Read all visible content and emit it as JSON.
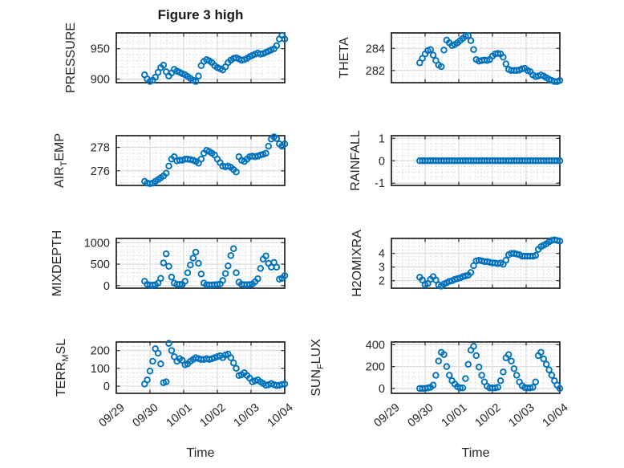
{
  "figure": {
    "title": "Figure 3 high",
    "xlabel": "Time",
    "marker_color": "#0072BD",
    "axis_color": "#262626",
    "grid_major_color": "#d9d9d9",
    "grid_minor_color": "#c3c3c3",
    "background": "#ffffff"
  },
  "chart_data": {
    "type": "scatter",
    "marker": "open-circle",
    "grid": "major solid + minor dotted",
    "legend": "none",
    "x_categories": [
      "09/29",
      "09/30",
      "10/01",
      "10/02",
      "10/03",
      "10/04"
    ],
    "x_unit": "days since 09/29",
    "xlim": [
      0,
      5
    ],
    "x_minor_per_day": 6,
    "layout": "4 rows x 2 columns",
    "subplots": [
      {
        "name": "PRESSURE",
        "ylabel": {
          "pre": "PRESSURE",
          "sub": "",
          "post": ""
        },
        "yticks": [
          900,
          950
        ],
        "ylim": [
          894,
          976
        ],
        "yminor": 10,
        "t_start": 0.84,
        "t_step": 0.08,
        "values": [
          907,
          900,
          896,
          898,
          903,
          911,
          919,
          923,
          912,
          905,
          910,
          916,
          913,
          911,
          909,
          907,
          904,
          901,
          898,
          896,
          905,
          922,
          929,
          932,
          930,
          927,
          922,
          919,
          917,
          915,
          920,
          927,
          931,
          934,
          935,
          933,
          931,
          932,
          934,
          937,
          939,
          941,
          943,
          941,
          942,
          944,
          946,
          948,
          950,
          955,
          966,
          972,
          966
        ]
      },
      {
        "name": "THETA",
        "ylabel": {
          "pre": "THETA",
          "sub": "",
          "post": ""
        },
        "yticks": [
          282,
          284
        ],
        "ylim": [
          280.9,
          285.4
        ],
        "yminor": 0.5,
        "t_start": 0.84,
        "t_step": 0.08,
        "values": [
          282.7,
          283.1,
          283.5,
          283.8,
          283.9,
          283.4,
          282.9,
          282.5,
          282.35,
          283.85,
          284.75,
          284.5,
          284.25,
          284.35,
          284.5,
          284.7,
          284.9,
          285.1,
          285.15,
          284.7,
          283.9,
          283.0,
          282.85,
          282.9,
          282.95,
          282.9,
          283.0,
          283.3,
          283.5,
          283.55,
          283.5,
          283.2,
          282.6,
          282.1,
          282.0,
          282.0,
          282.0,
          282.05,
          282.15,
          282.2,
          282.0,
          281.9,
          281.6,
          281.45,
          281.5,
          281.6,
          281.5,
          281.35,
          281.2,
          281.1,
          281.0,
          281.0,
          281.1
        ]
      },
      {
        "name": "AIR_TEMP",
        "ylabel": {
          "pre": "AIR",
          "sub": "T",
          "post": "EMP"
        },
        "yticks": [
          276,
          278
        ],
        "ylim": [
          274.75,
          279.0
        ],
        "yminor": 0.5,
        "t_start": 0.84,
        "t_step": 0.08,
        "values": [
          275.1,
          274.95,
          274.9,
          274.95,
          275.1,
          275.25,
          275.4,
          275.55,
          275.8,
          276.4,
          277.0,
          277.2,
          276.85,
          276.9,
          276.9,
          277.0,
          277.0,
          276.95,
          276.9,
          276.8,
          276.65,
          277.0,
          277.5,
          277.75,
          277.65,
          277.5,
          277.35,
          277.0,
          276.7,
          276.4,
          276.35,
          276.4,
          276.3,
          276.1,
          275.9,
          277.2,
          276.9,
          276.8,
          277.0,
          277.2,
          277.25,
          277.2,
          277.25,
          277.35,
          277.4,
          277.5,
          278.1,
          278.7,
          278.9,
          278.75,
          278.3,
          278.1,
          278.3
        ]
      },
      {
        "name": "RAINFALL",
        "ylabel": {
          "pre": "RAINFALL",
          "sub": "",
          "post": ""
        },
        "yticks": [
          -1,
          0,
          1
        ],
        "ylim": [
          -1.1,
          1.12
        ],
        "yminor": 0.25,
        "t_start": 0.84,
        "t_step": 0.08,
        "values": [
          0,
          0,
          0,
          0,
          0,
          0,
          0,
          0,
          0,
          0,
          0,
          0,
          0,
          0,
          0,
          0,
          0,
          0,
          0,
          0,
          0,
          0,
          0,
          0,
          0,
          0,
          0,
          0,
          0,
          0,
          0,
          0,
          0,
          0,
          0,
          0,
          0,
          0,
          0,
          0,
          0,
          0,
          0,
          0,
          0,
          0,
          0,
          0,
          0,
          0,
          0,
          0,
          0
        ]
      },
      {
        "name": "MIXDEPTH",
        "ylabel": {
          "pre": "MIXDEPTH",
          "sub": "",
          "post": ""
        },
        "yticks": [
          0,
          500,
          1000
        ],
        "ylim": [
          -60,
          1100
        ],
        "yminor": 100,
        "t_start": 0.84,
        "t_step": 0.08,
        "values": [
          100,
          30,
          10,
          10,
          20,
          60,
          170,
          530,
          740,
          450,
          200,
          60,
          30,
          30,
          25,
          100,
          300,
          480,
          640,
          780,
          520,
          270,
          60,
          20,
          15,
          15,
          20,
          25,
          40,
          120,
          280,
          460,
          700,
          860,
          300,
          80,
          30,
          20,
          20,
          25,
          40,
          90,
          160,
          400,
          620,
          690,
          520,
          430,
          540,
          430,
          150,
          170,
          230
        ]
      },
      {
        "name": "H2OMIXRA",
        "ylabel": {
          "pre": "H2OMIXRA",
          "sub": "",
          "post": ""
        },
        "yticks": [
          2,
          3,
          4
        ],
        "ylim": [
          1.45,
          5.1
        ],
        "yminor": 0.25,
        "t_start": 0.84,
        "t_step": 0.08,
        "values": [
          2.25,
          2.05,
          1.7,
          1.8,
          2.1,
          2.3,
          2.05,
          1.7,
          1.6,
          1.75,
          1.85,
          1.95,
          2.0,
          2.1,
          2.15,
          2.2,
          2.3,
          2.35,
          2.4,
          2.6,
          3.1,
          3.45,
          3.5,
          3.45,
          3.4,
          3.4,
          3.35,
          3.3,
          3.3,
          3.25,
          3.3,
          3.2,
          3.5,
          3.9,
          4.0,
          4.0,
          3.95,
          3.9,
          3.8,
          3.8,
          3.8,
          3.8,
          3.8,
          3.85,
          4.3,
          4.5,
          4.6,
          4.7,
          4.85,
          4.95,
          5.0,
          4.95,
          4.9
        ]
      },
      {
        "name": "TERR_MSL",
        "ylabel": {
          "pre": "TERR",
          "sub": "M",
          "post": "SL"
        },
        "yticks": [
          0,
          100,
          200
        ],
        "ylim": [
          -40,
          248
        ],
        "yminor": 25,
        "t_start": 0.84,
        "t_step": 0.08,
        "values": [
          12,
          35,
          85,
          140,
          210,
          185,
          125,
          20,
          25,
          240,
          200,
          165,
          140,
          155,
          145,
          120,
          125,
          140,
          150,
          160,
          155,
          150,
          150,
          155,
          150,
          155,
          160,
          165,
          170,
          160,
          175,
          180,
          160,
          130,
          100,
          60,
          65,
          75,
          60,
          45,
          25,
          30,
          35,
          25,
          15,
          5,
          8,
          15,
          8,
          3,
          5,
          10,
          12
        ]
      },
      {
        "name": "SUN_FLUX",
        "ylabel": {
          "pre": "SUN",
          "sub": "F",
          "post": "LUX"
        },
        "yticks": [
          0,
          200,
          400
        ],
        "ylim": [
          -45,
          425
        ],
        "yminor": 50,
        "t_start": 0.84,
        "t_step": 0.08,
        "values": [
          0,
          0,
          0,
          5,
          10,
          30,
          120,
          250,
          330,
          310,
          200,
          120,
          70,
          40,
          15,
          5,
          5,
          90,
          220,
          350,
          385,
          300,
          195,
          120,
          60,
          20,
          5,
          5,
          5,
          10,
          70,
          150,
          280,
          310,
          250,
          180,
          120,
          60,
          25,
          8,
          5,
          5,
          10,
          60,
          300,
          330,
          270,
          220,
          170,
          120,
          70,
          30,
          0
        ]
      }
    ]
  }
}
